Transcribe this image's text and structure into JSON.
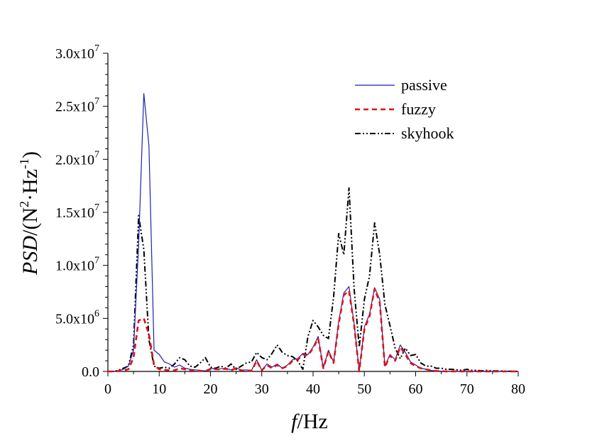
{
  "chart_data": {
    "type": "line",
    "xlabel": {
      "italic": "f",
      "rest": "/Hz"
    },
    "ylabel": {
      "italic": "PSD",
      "rest": "/(N",
      "sup1": "2",
      "mid": "·Hz",
      "sup2": "-1",
      "end": ")"
    },
    "xlim": [
      0,
      80
    ],
    "ylim": [
      0,
      30000000
    ],
    "x_ticks": [
      0,
      10,
      20,
      30,
      40,
      50,
      60,
      70,
      80
    ],
    "x_tick_labels": [
      "0",
      "10",
      "20",
      "30",
      "40",
      "50",
      "60",
      "70",
      "80"
    ],
    "y_ticks": [
      0,
      5000000,
      10000000,
      15000000,
      20000000,
      25000000,
      30000000
    ],
    "y_tick_labels": [
      {
        "mant": "0.0",
        "exp": ""
      },
      {
        "mant": "5.0x10",
        "exp": "6"
      },
      {
        "mant": "1.0x10",
        "exp": "7"
      },
      {
        "mant": "1.5x10",
        "exp": "7"
      },
      {
        "mant": "2.0x10",
        "exp": "7"
      },
      {
        "mant": "2.5x10",
        "exp": "7"
      },
      {
        "mant": "3.0x10",
        "exp": "7"
      }
    ],
    "grid": false,
    "legend_position": "top-right",
    "series": [
      {
        "name": "passive",
        "color": "#1f1fb4",
        "style": "solid",
        "x": [
          0,
          1,
          2,
          3,
          4,
          5,
          6,
          7,
          8,
          9,
          10,
          11,
          12,
          13,
          14,
          15,
          16,
          17,
          18,
          19,
          20,
          21,
          22,
          23,
          24,
          25,
          26,
          27,
          28,
          29,
          30,
          31,
          32,
          33,
          34,
          35,
          36,
          37,
          38,
          39,
          40,
          41,
          42,
          43,
          44,
          45,
          46,
          47,
          48,
          49,
          50,
          51,
          52,
          53,
          54,
          55,
          56,
          57,
          58,
          59,
          60,
          61,
          62,
          63,
          64,
          65,
          66,
          67,
          68,
          69,
          70,
          71,
          72,
          73,
          74,
          75,
          76,
          77,
          78,
          79,
          80
        ],
        "y": [
          0,
          0,
          50000,
          200000,
          500000,
          2000000,
          12000000,
          26200000,
          21300000,
          2000000,
          1600000,
          900000,
          700000,
          400000,
          600000,
          300000,
          200000,
          150000,
          100000,
          50000,
          300000,
          200000,
          250000,
          300000,
          150000,
          350000,
          100000,
          150000,
          100000,
          1100000,
          100000,
          700000,
          400000,
          700000,
          300000,
          600000,
          1100000,
          1200000,
          1700000,
          1600000,
          2300000,
          3300000,
          300000,
          2000000,
          900000,
          4700000,
          7400000,
          8000000,
          4500000,
          0,
          4200000,
          5400000,
          7900000,
          6800000,
          500000,
          1600000,
          1100000,
          2500000,
          1800000,
          900000,
          600000,
          300000,
          200000,
          100000,
          50000,
          30000,
          20000,
          10000,
          10000,
          5000,
          5000,
          5000,
          0,
          0,
          0,
          0,
          0,
          0,
          0,
          0,
          0
        ]
      },
      {
        "name": "fuzzy",
        "color": "#e01010",
        "style": "dashed",
        "x": [
          0,
          1,
          2,
          3,
          4,
          5,
          6,
          7,
          8,
          9,
          10,
          11,
          12,
          13,
          14,
          15,
          16,
          17,
          18,
          19,
          20,
          21,
          22,
          23,
          24,
          25,
          26,
          27,
          28,
          29,
          30,
          31,
          32,
          33,
          34,
          35,
          36,
          37,
          38,
          39,
          40,
          41,
          42,
          43,
          44,
          45,
          46,
          47,
          48,
          49,
          50,
          51,
          52,
          53,
          54,
          55,
          56,
          57,
          58,
          59,
          60,
          61,
          62,
          63,
          64,
          65,
          66,
          67,
          68,
          69,
          70,
          71,
          72,
          73,
          74,
          75,
          76,
          77,
          78,
          79,
          80
        ],
        "y": [
          0,
          0,
          30000,
          100000,
          200000,
          1300000,
          4800000,
          5000000,
          3500000,
          600000,
          200000,
          150000,
          100000,
          100000,
          300000,
          200000,
          100000,
          100000,
          50000,
          50000,
          200000,
          200000,
          200000,
          250000,
          100000,
          300000,
          100000,
          100000,
          50000,
          1000000,
          100000,
          600000,
          300000,
          600000,
          300000,
          500000,
          1000000,
          1100000,
          1600000,
          1500000,
          2200000,
          3100000,
          300000,
          1900000,
          800000,
          4500000,
          7200000,
          7600000,
          4400000,
          0,
          4000000,
          5200000,
          7800000,
          6500000,
          400000,
          1500000,
          1000000,
          2300000,
          1600000,
          800000,
          500000,
          300000,
          200000,
          100000,
          50000,
          20000,
          10000,
          10000,
          5000,
          5000,
          5000,
          0,
          0,
          0,
          0,
          0,
          0,
          0,
          0,
          0,
          0
        ]
      },
      {
        "name": "skyhook",
        "color": "#000000",
        "style": "dashdotdot",
        "x": [
          0,
          1,
          2,
          3,
          4,
          5,
          6,
          7,
          8,
          9,
          10,
          11,
          12,
          13,
          14,
          15,
          16,
          17,
          18,
          19,
          20,
          21,
          22,
          23,
          24,
          25,
          26,
          27,
          28,
          29,
          30,
          31,
          32,
          33,
          34,
          35,
          36,
          37,
          38,
          39,
          40,
          41,
          42,
          43,
          44,
          45,
          46,
          47,
          48,
          49,
          50,
          51,
          52,
          53,
          54,
          55,
          56,
          57,
          58,
          59,
          60,
          61,
          62,
          63,
          64,
          65,
          66,
          67,
          68,
          69,
          70,
          71,
          72,
          73,
          74,
          75,
          76,
          77,
          78,
          79,
          80
        ],
        "y": [
          0,
          0,
          100000,
          300000,
          500000,
          2500000,
          14700000,
          11500000,
          3000000,
          500000,
          300000,
          400000,
          300000,
          700000,
          1300000,
          1100000,
          500000,
          400000,
          800000,
          1300000,
          400000,
          300000,
          500000,
          300000,
          700000,
          200000,
          500000,
          800000,
          900000,
          1800000,
          1300000,
          1100000,
          1700000,
          2500000,
          1800000,
          1500000,
          1400000,
          1000000,
          200000,
          3300000,
          4800000,
          4200000,
          3400000,
          3100000,
          7000000,
          13000000,
          11000000,
          17300000,
          7800000,
          2300000,
          6800000,
          9000000,
          14000000,
          11000000,
          6300000,
          4300000,
          2200000,
          1200000,
          2200000,
          1500000,
          1600000,
          800000,
          500000,
          500000,
          300000,
          300000,
          200000,
          200000,
          150000,
          100000,
          200000,
          100000,
          100000,
          50000,
          100000,
          50000,
          50000,
          30000,
          20000,
          10000,
          10000
        ]
      }
    ]
  }
}
